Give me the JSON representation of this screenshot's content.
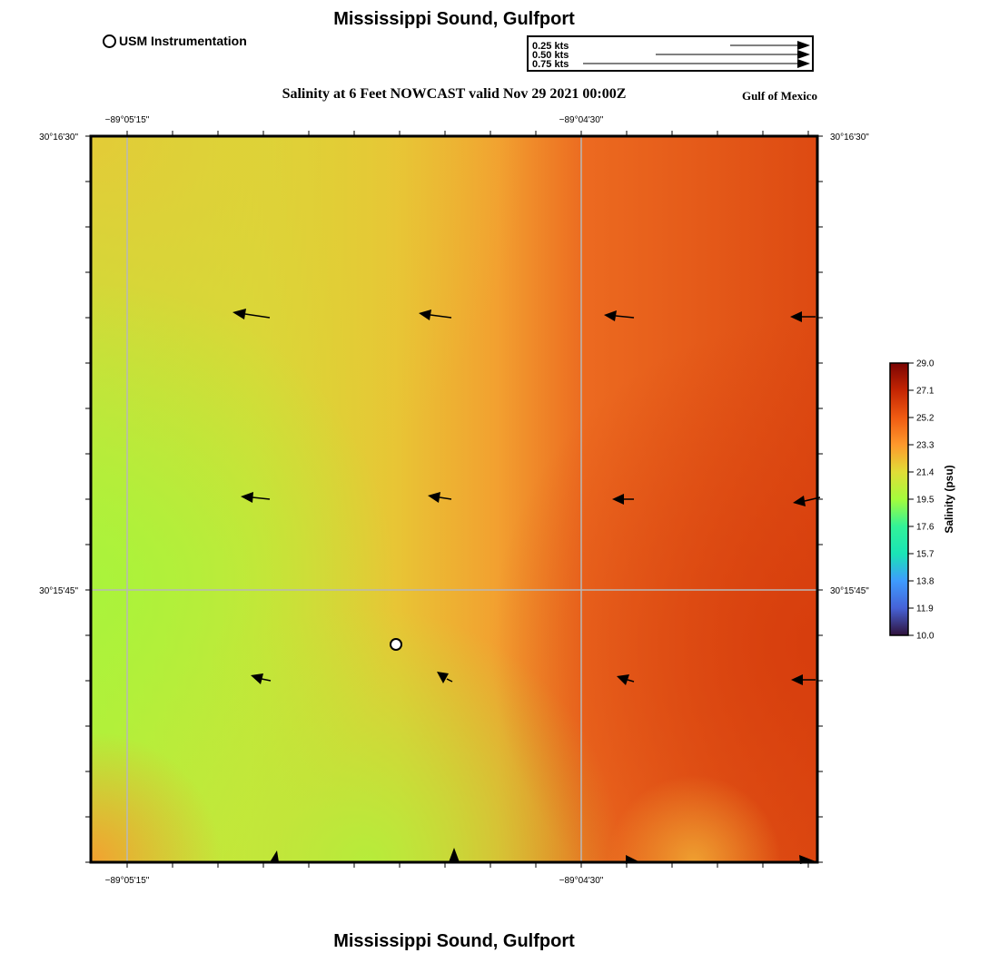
{
  "header": {
    "title": "Mississippi Sound, Gulfport",
    "legend_label": "USM Instrumentation",
    "subtitle": "Salinity at 6 Feet NOWCAST valid Nov 29 2021 00:00Z",
    "region": "Gulf of Mexico"
  },
  "vector_scale": {
    "labels": [
      "0.25 kts",
      "0.50 kts",
      "0.75 kts"
    ],
    "speeds_kts": [
      0.25,
      0.5,
      0.75
    ]
  },
  "map": {
    "lon_ticks": [
      "−89°05'15\"",
      "−89°04'30\""
    ],
    "lat_ticks": [
      "30°16'30\"",
      "30°15'45\""
    ],
    "field_colors": {
      "green": "#b7ec3c",
      "yellow": "#e3d238",
      "orange": "#f2a030",
      "red": "#dc4310"
    }
  },
  "colorbar": {
    "label": "Salinity (psu)",
    "ticks": [
      "29.0",
      "27.1",
      "25.2",
      "23.3",
      "21.4",
      "19.5",
      "17.6",
      "15.7",
      "13.8",
      "11.9",
      "10.0"
    ],
    "min": 10.0,
    "max": 29.0,
    "colors": [
      "#7a0403",
      "#c42503",
      "#f05b12",
      "#fe992c",
      "#e1dd37",
      "#a4fc3c",
      "#32f298",
      "#1ae4b6",
      "#3e9bfe",
      "#4662d7",
      "#30123b"
    ]
  },
  "footer": {
    "title": "Mississippi Sound, Gulfport"
  }
}
